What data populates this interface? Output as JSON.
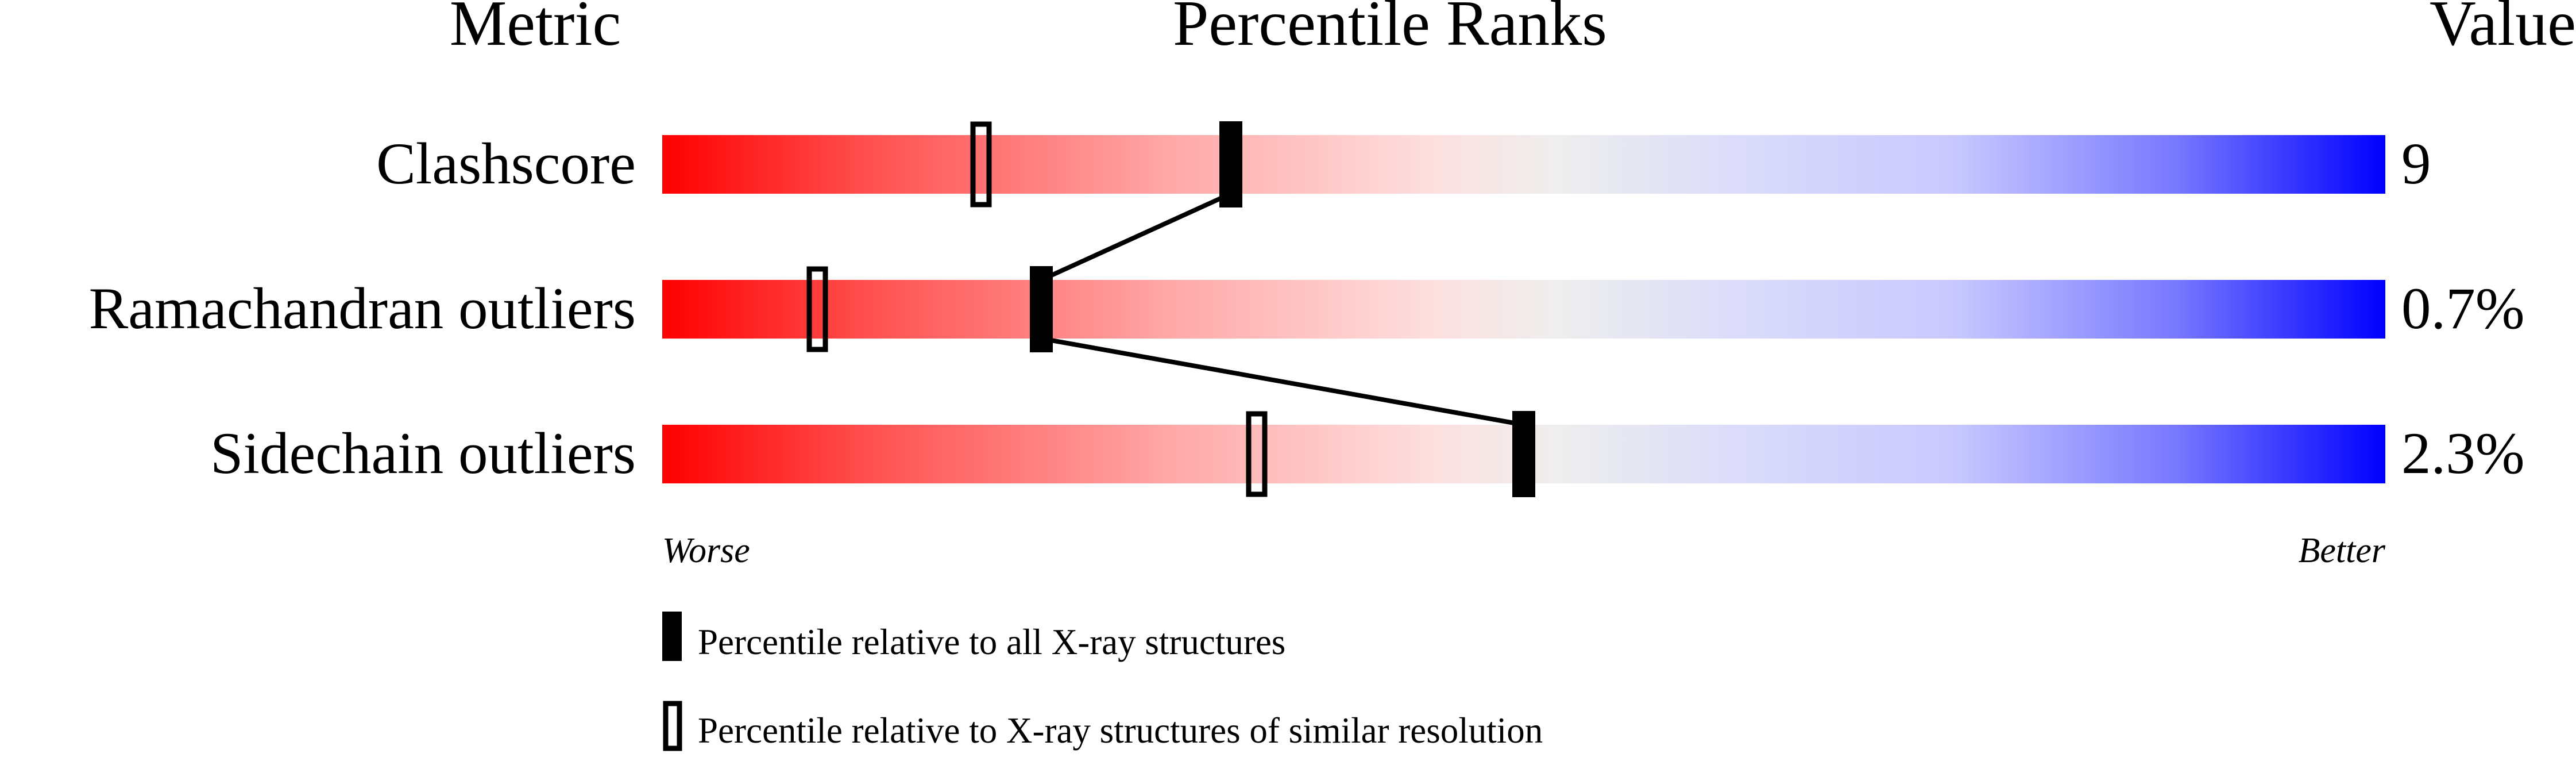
{
  "chart_data": {
    "type": "percentile-ranks",
    "headers": {
      "metric": "Metric",
      "title": "Percentile Ranks",
      "value": "Value"
    },
    "axis": {
      "worse": "Worse",
      "better": "Better",
      "range": [
        0,
        100
      ]
    },
    "colors": {
      "worse": "#ff0000",
      "middle": "#eeeeee",
      "better": "#0000ff",
      "marker": "#000000"
    },
    "rows": [
      {
        "metric": "Clashscore",
        "value": "9",
        "percentile_all": 33,
        "percentile_similar": 18.5
      },
      {
        "metric": "Ramachandran outliers",
        "value": "0.7%",
        "percentile_all": 22,
        "percentile_similar": 9
      },
      {
        "metric": "Sidechain outliers",
        "value": "2.3%",
        "percentile_all": 50,
        "percentile_similar": 34.5
      }
    ],
    "legend": [
      {
        "marker": "filled",
        "label": "Percentile relative to all X-ray structures"
      },
      {
        "marker": "hollow",
        "label": "Percentile relative to X-ray structures of similar resolution"
      }
    ]
  }
}
